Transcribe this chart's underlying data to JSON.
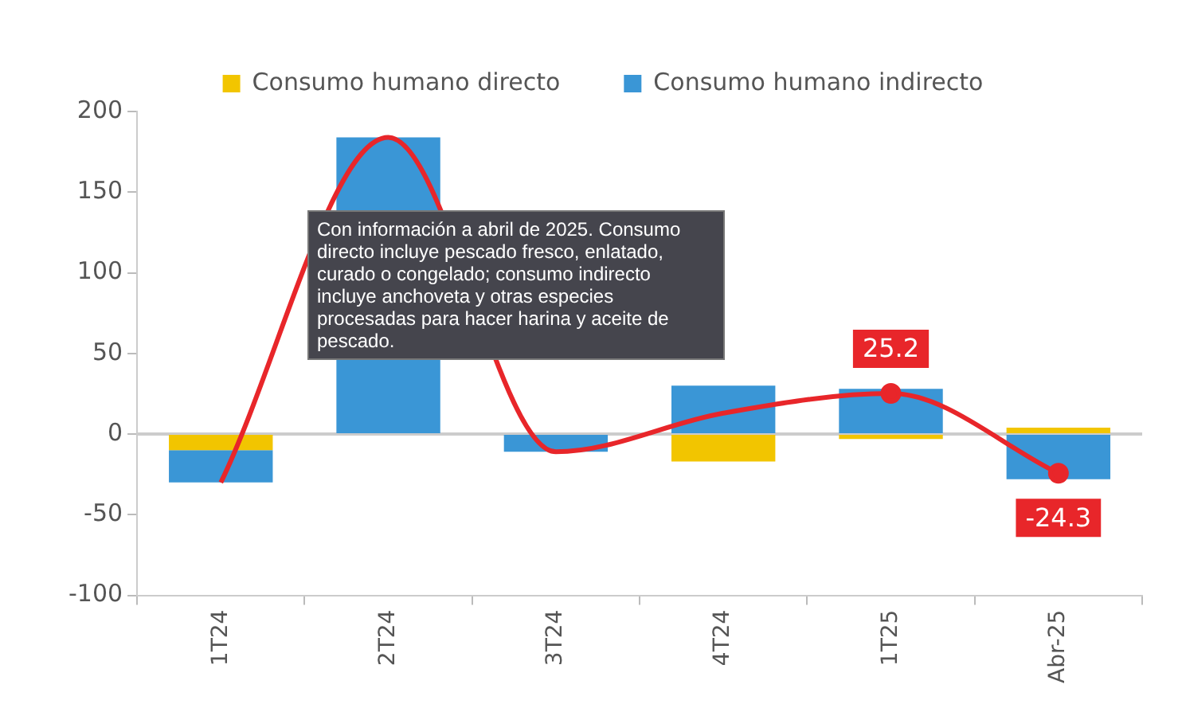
{
  "chart_data": {
    "type": "bar",
    "stacked": true,
    "categories": [
      "1T24",
      "2T24",
      "3T24",
      "4T24",
      "1T25",
      "Abr-25"
    ],
    "series": [
      {
        "name": "Consumo humano directo",
        "color": "#f2c500",
        "values": [
          -10,
          0,
          0,
          -17,
          -3,
          4
        ]
      },
      {
        "name": "Consumo humano indirecto",
        "color": "#3a96d6",
        "values": [
          -20,
          184,
          -11,
          30,
          28,
          -28
        ]
      },
      {
        "type": "line",
        "color": "#e8262a",
        "values": [
          -30,
          184,
          -11,
          13,
          25.2,
          -24.3
        ],
        "value_labels": [
          null,
          null,
          null,
          null,
          "25.2",
          "-24.3"
        ]
      }
    ],
    "ylim": [
      -100,
      200
    ],
    "yticks": [
      -100,
      -50,
      0,
      50,
      100,
      150,
      200
    ],
    "grid": false,
    "legend": "top",
    "line_style": "solid",
    "ref_lines": [
      {
        "axis": "y",
        "value": 0,
        "color": "#cccccc"
      }
    ],
    "annotations": [
      "Con información a abril de 2025. Consumo directo incluye pescado fresco, enlatado, curado o congelado; consumo indirecto incluye anchoveta y otras especies procesadas para hacer harina y aceite de pescado."
    ]
  }
}
